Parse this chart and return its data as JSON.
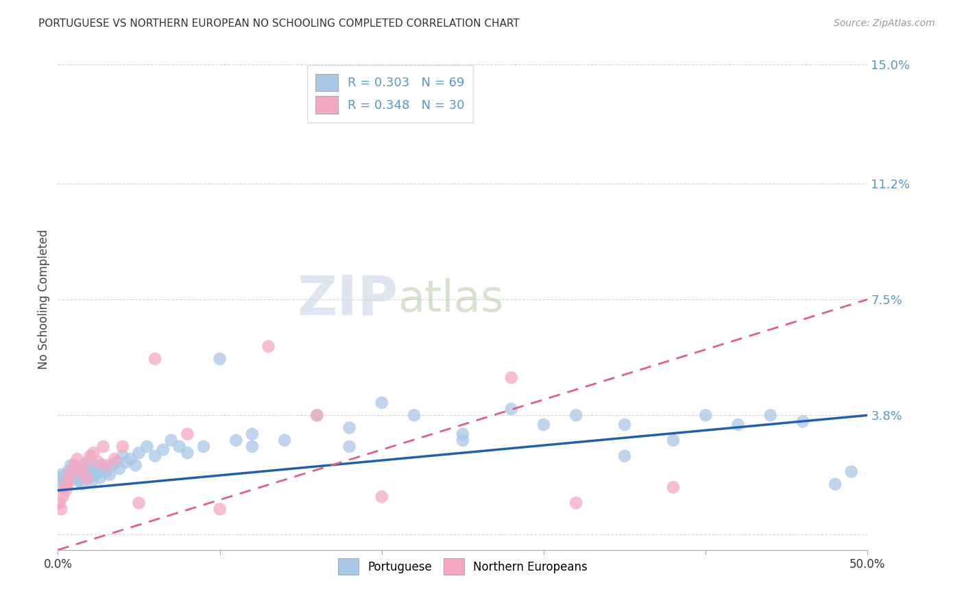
{
  "title": "PORTUGUESE VS NORTHERN EUROPEAN NO SCHOOLING COMPLETED CORRELATION CHART",
  "source": "Source: ZipAtlas.com",
  "ylabel": "No Schooling Completed",
  "xlim": [
    0.0,
    0.5
  ],
  "ylim": [
    -0.005,
    0.155
  ],
  "yticks": [
    0.0,
    0.038,
    0.075,
    0.112,
    0.15
  ],
  "ytick_labels": [
    "",
    "3.8%",
    "7.5%",
    "11.2%",
    "15.0%"
  ],
  "xticks": [
    0.0,
    0.1,
    0.2,
    0.3,
    0.4,
    0.5
  ],
  "xtick_labels": [
    "0.0%",
    "",
    "",
    "",
    "",
    "50.0%"
  ],
  "portuguese_color": "#a8c8e8",
  "northern_color": "#f4a8c0",
  "trend_blue": "#2060b0",
  "trend_pink": "#e06080",
  "tick_color": "#5599cc",
  "R_portuguese": 0.303,
  "N_portuguese": 69,
  "R_northern": 0.348,
  "N_northern": 30,
  "watermark_zip": "ZIP",
  "watermark_atlas": "atlas",
  "watermark_color_zip": "#c8d8e8",
  "watermark_color_atlas": "#b0c8a0",
  "portuguese_x": [
    0.001,
    0.002,
    0.003,
    0.004,
    0.005,
    0.006,
    0.007,
    0.008,
    0.009,
    0.01,
    0.011,
    0.012,
    0.013,
    0.014,
    0.015,
    0.016,
    0.017,
    0.018,
    0.019,
    0.02,
    0.021,
    0.022,
    0.023,
    0.024,
    0.025,
    0.026,
    0.027,
    0.028,
    0.03,
    0.032,
    0.034,
    0.036,
    0.038,
    0.04,
    0.042,
    0.045,
    0.048,
    0.05,
    0.055,
    0.06,
    0.065,
    0.07,
    0.075,
    0.08,
    0.09,
    0.1,
    0.11,
    0.12,
    0.14,
    0.16,
    0.18,
    0.2,
    0.22,
    0.25,
    0.28,
    0.3,
    0.32,
    0.35,
    0.38,
    0.4,
    0.42,
    0.44,
    0.46,
    0.48,
    0.49,
    0.25,
    0.18,
    0.35,
    0.12
  ],
  "portuguese_y": [
    0.018,
    0.019,
    0.015,
    0.017,
    0.016,
    0.02,
    0.018,
    0.022,
    0.019,
    0.021,
    0.02,
    0.018,
    0.017,
    0.019,
    0.016,
    0.021,
    0.02,
    0.023,
    0.018,
    0.02,
    0.017,
    0.022,
    0.019,
    0.021,
    0.02,
    0.018,
    0.022,
    0.021,
    0.02,
    0.019,
    0.022,
    0.023,
    0.021,
    0.025,
    0.023,
    0.024,
    0.022,
    0.026,
    0.028,
    0.025,
    0.027,
    0.03,
    0.028,
    0.026,
    0.028,
    0.056,
    0.03,
    0.032,
    0.03,
    0.038,
    0.034,
    0.042,
    0.038,
    0.03,
    0.04,
    0.035,
    0.038,
    0.035,
    0.03,
    0.038,
    0.035,
    0.038,
    0.036,
    0.016,
    0.02,
    0.032,
    0.028,
    0.025,
    0.028
  ],
  "northern_x": [
    0.001,
    0.002,
    0.003,
    0.004,
    0.005,
    0.006,
    0.007,
    0.008,
    0.01,
    0.012,
    0.014,
    0.016,
    0.018,
    0.02,
    0.022,
    0.025,
    0.028,
    0.03,
    0.035,
    0.04,
    0.05,
    0.06,
    0.08,
    0.1,
    0.13,
    0.16,
    0.2,
    0.28,
    0.32,
    0.38
  ],
  "northern_y": [
    0.01,
    0.008,
    0.012,
    0.015,
    0.014,
    0.016,
    0.018,
    0.02,
    0.022,
    0.024,
    0.02,
    0.022,
    0.018,
    0.025,
    0.026,
    0.023,
    0.028,
    0.022,
    0.024,
    0.028,
    0.01,
    0.056,
    0.032,
    0.008,
    0.06,
    0.038,
    0.012,
    0.05,
    0.01,
    0.015
  ]
}
